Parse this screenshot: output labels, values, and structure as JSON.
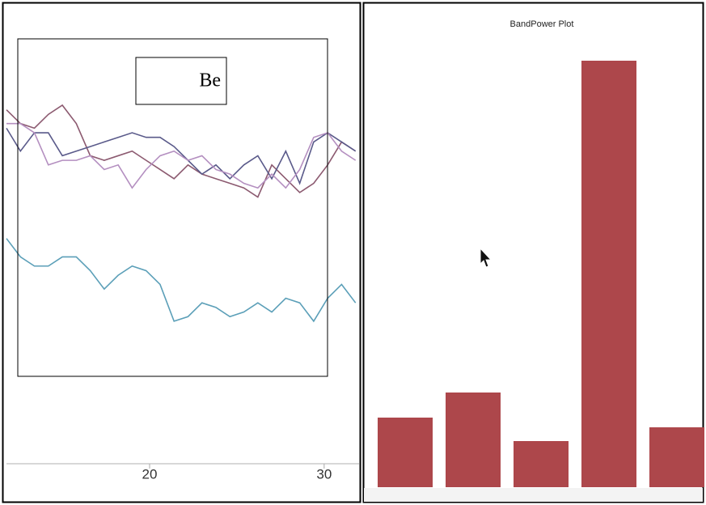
{
  "chart_data": [
    {
      "type": "line",
      "annotation": "Be",
      "x": [
        11.8,
        12.6,
        13.4,
        14.2,
        15.0,
        15.8,
        16.6,
        17.4,
        18.2,
        19.0,
        19.8,
        20.6,
        21.4,
        22.2,
        23.0,
        23.8,
        24.6,
        25.4,
        26.2,
        27.0,
        27.8,
        28.6,
        29.4,
        30.2,
        31.0,
        31.8
      ],
      "xlim": [
        11.8,
        32
      ],
      "xticks": [
        20,
        30
      ],
      "ylim": [
        0,
        100
      ],
      "series": [
        {
          "color": "#5b9fb8",
          "values": [
            49,
            45,
            43,
            43,
            45,
            45,
            42,
            38,
            41,
            43,
            42,
            39,
            31,
            32,
            35,
            34,
            32,
            33,
            35,
            33,
            36,
            35,
            31,
            36,
            39,
            35
          ]
        },
        {
          "color": "#8c5a70",
          "values": [
            77,
            74,
            73,
            76,
            78,
            74,
            67,
            66,
            67,
            68,
            66,
            64,
            62,
            65,
            63,
            62,
            61,
            60,
            58,
            65,
            62,
            59,
            61,
            65,
            70,
            68
          ]
        },
        {
          "color": "#5a5a8a",
          "values": [
            73,
            68,
            72,
            72,
            67,
            68,
            69,
            70,
            71,
            72,
            71,
            71,
            69,
            66,
            63,
            65,
            62,
            65,
            67,
            62,
            68,
            61,
            70,
            72,
            70,
            68
          ]
        },
        {
          "color": "#b48fc0",
          "values": [
            74,
            74,
            72,
            65,
            66,
            66,
            67,
            64,
            65,
            60,
            64,
            67,
            68,
            66,
            67,
            64,
            63,
            61,
            60,
            63,
            60,
            64,
            71,
            72,
            68,
            66
          ]
        }
      ]
    },
    {
      "type": "bar",
      "title": "BandPower Plot",
      "categories": [
        null,
        null,
        null,
        null,
        null
      ],
      "values": [
        86,
        117,
        57,
        527,
        74
      ],
      "color": "#ad474b",
      "ylim": [
        0,
        560
      ]
    }
  ]
}
